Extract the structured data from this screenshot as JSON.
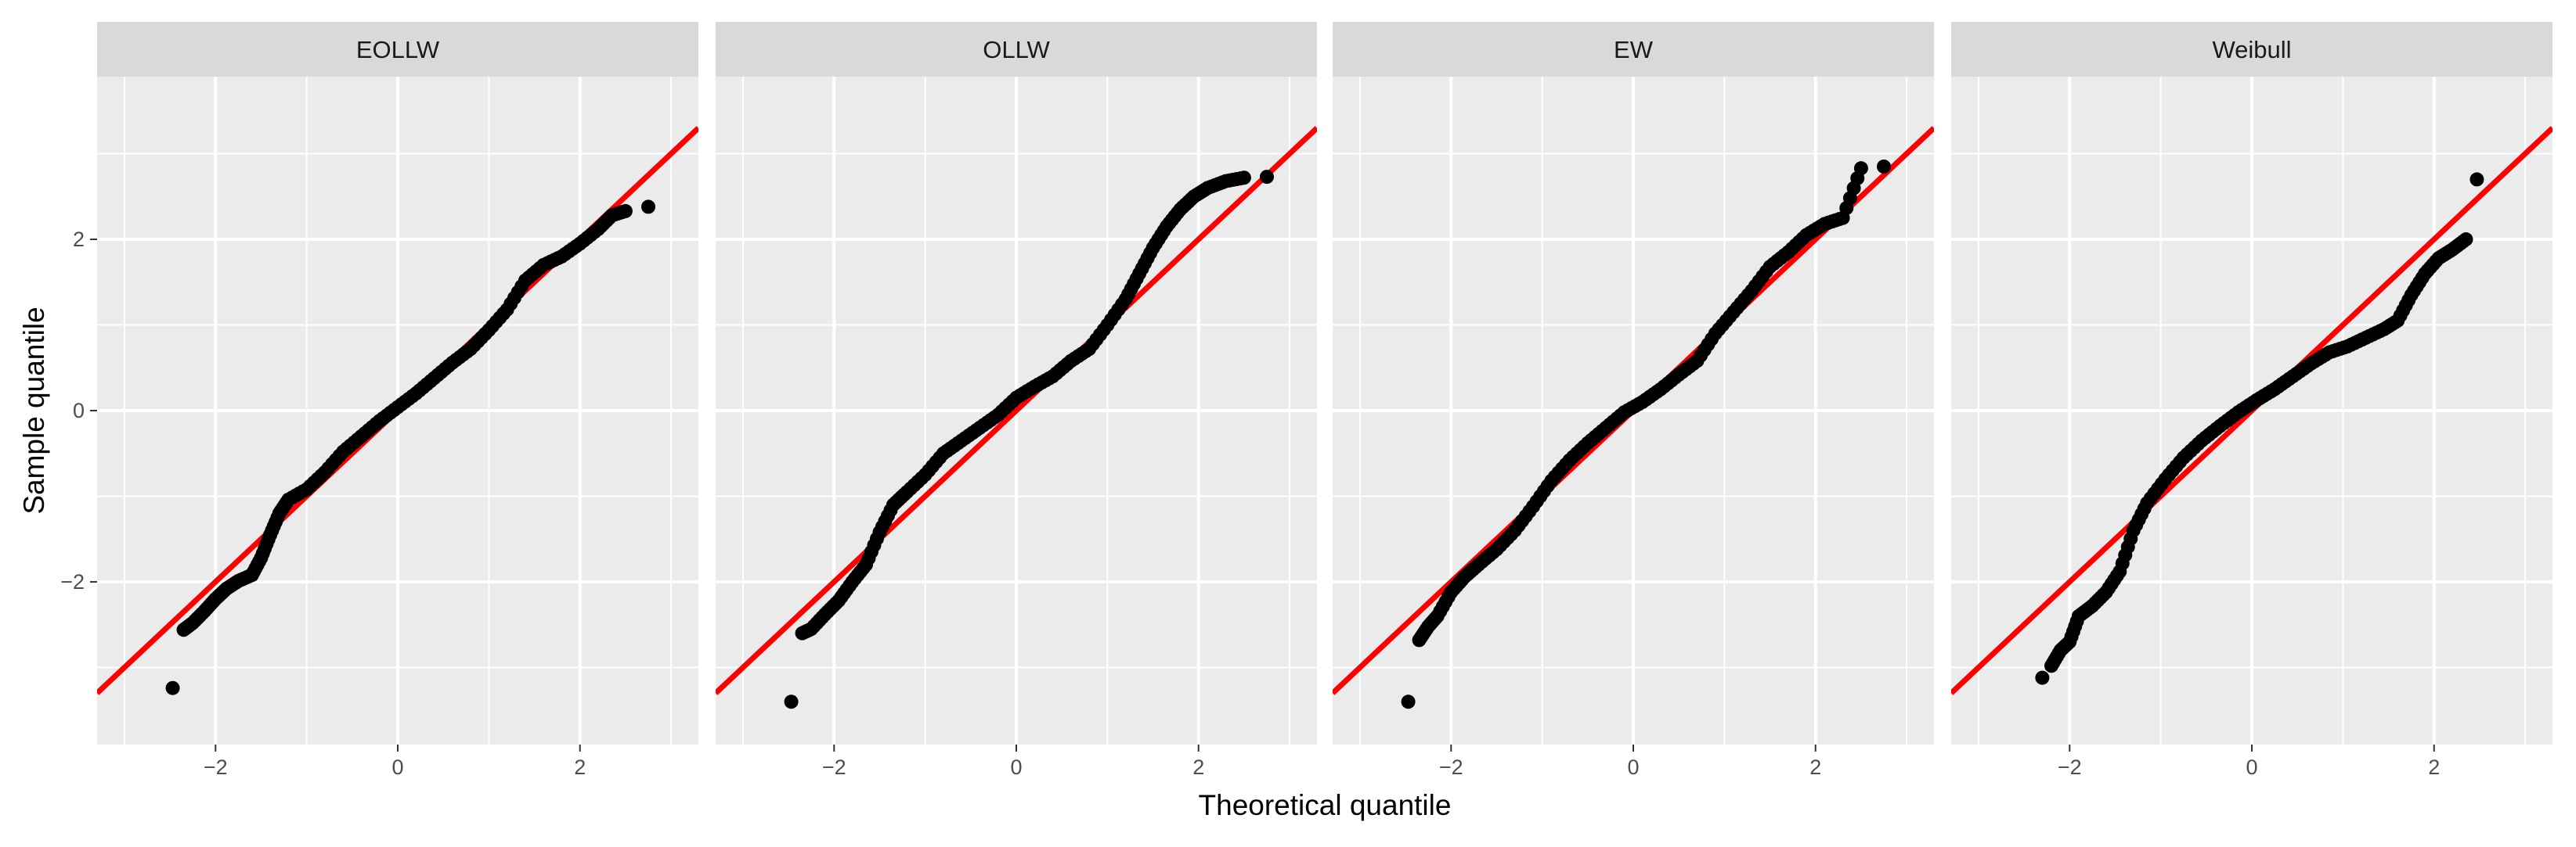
{
  "chart_data": {
    "type": "scatter",
    "subtype": "qq-plot facets",
    "xlabel": "Theoretical quantile",
    "ylabel": "Sample quantile",
    "xlim": [
      -3.3,
      3.3
    ],
    "ylim": [
      -3.9,
      3.9
    ],
    "x_ticks": [
      -2,
      0,
      2
    ],
    "y_ticks": [
      -2,
      0,
      2
    ],
    "x_tick_labels": [
      "−2",
      "0",
      "2"
    ],
    "y_tick_labels": [
      "−2",
      "0",
      "2"
    ],
    "grid": true,
    "legend": "none",
    "colors": {
      "panel_background": "#ebebeb",
      "strip_background": "#d9d9d9",
      "grid_line": "#ffffff",
      "point": "#000000",
      "reference_line": "#ff0000"
    },
    "reference_line": {
      "slope": 1,
      "intercept": 0
    },
    "panels": [
      {
        "title": "EOLLW",
        "points": [
          [
            -2.47,
            -3.24
          ],
          [
            -2.35,
            -2.56
          ],
          [
            -2.25,
            -2.48
          ],
          [
            -2.12,
            -2.34
          ],
          [
            -2.0,
            -2.2
          ],
          [
            -1.88,
            -2.08
          ],
          [
            -1.75,
            -1.99
          ],
          [
            -1.6,
            -1.92
          ],
          [
            -1.5,
            -1.72
          ],
          [
            -1.4,
            -1.45
          ],
          [
            -1.3,
            -1.2
          ],
          [
            -1.2,
            -1.04
          ],
          [
            -1.0,
            -0.92
          ],
          [
            -0.8,
            -0.72
          ],
          [
            -0.6,
            -0.48
          ],
          [
            -0.4,
            -0.3
          ],
          [
            -0.2,
            -0.12
          ],
          [
            0.0,
            0.04
          ],
          [
            0.2,
            0.2
          ],
          [
            0.4,
            0.38
          ],
          [
            0.6,
            0.56
          ],
          [
            0.8,
            0.72
          ],
          [
            1.0,
            0.94
          ],
          [
            1.2,
            1.18
          ],
          [
            1.4,
            1.52
          ],
          [
            1.6,
            1.7
          ],
          [
            1.8,
            1.8
          ],
          [
            2.0,
            1.95
          ],
          [
            2.2,
            2.12
          ],
          [
            2.35,
            2.28
          ],
          [
            2.5,
            2.33
          ],
          [
            2.75,
            2.38
          ]
        ]
      },
      {
        "title": "OLLW",
        "points": [
          [
            -2.47,
            -3.4
          ],
          [
            -2.35,
            -2.6
          ],
          [
            -2.25,
            -2.55
          ],
          [
            -2.1,
            -2.38
          ],
          [
            -1.95,
            -2.22
          ],
          [
            -1.8,
            -2.0
          ],
          [
            -1.65,
            -1.8
          ],
          [
            -1.5,
            -1.42
          ],
          [
            -1.35,
            -1.1
          ],
          [
            -1.2,
            -0.95
          ],
          [
            -1.0,
            -0.75
          ],
          [
            -0.8,
            -0.5
          ],
          [
            -0.6,
            -0.35
          ],
          [
            -0.4,
            -0.2
          ],
          [
            -0.2,
            -0.05
          ],
          [
            0.0,
            0.15
          ],
          [
            0.2,
            0.28
          ],
          [
            0.4,
            0.4
          ],
          [
            0.6,
            0.58
          ],
          [
            0.8,
            0.72
          ],
          [
            1.0,
            1.0
          ],
          [
            1.2,
            1.3
          ],
          [
            1.35,
            1.6
          ],
          [
            1.5,
            1.9
          ],
          [
            1.65,
            2.15
          ],
          [
            1.8,
            2.35
          ],
          [
            1.95,
            2.5
          ],
          [
            2.1,
            2.6
          ],
          [
            2.3,
            2.68
          ],
          [
            2.5,
            2.72
          ],
          [
            2.75,
            2.73
          ]
        ]
      },
      {
        "title": "EW",
        "points": [
          [
            -2.47,
            -3.4
          ],
          [
            -2.35,
            -2.68
          ],
          [
            -2.25,
            -2.52
          ],
          [
            -2.15,
            -2.4
          ],
          [
            -2.0,
            -2.12
          ],
          [
            -1.85,
            -1.94
          ],
          [
            -1.7,
            -1.8
          ],
          [
            -1.5,
            -1.62
          ],
          [
            -1.3,
            -1.4
          ],
          [
            -1.1,
            -1.12
          ],
          [
            -0.9,
            -0.82
          ],
          [
            -0.7,
            -0.58
          ],
          [
            -0.5,
            -0.38
          ],
          [
            -0.3,
            -0.2
          ],
          [
            -0.1,
            -0.02
          ],
          [
            0.1,
            0.1
          ],
          [
            0.3,
            0.25
          ],
          [
            0.5,
            0.42
          ],
          [
            0.7,
            0.58
          ],
          [
            0.9,
            0.9
          ],
          [
            1.1,
            1.15
          ],
          [
            1.3,
            1.4
          ],
          [
            1.5,
            1.68
          ],
          [
            1.7,
            1.85
          ],
          [
            1.9,
            2.05
          ],
          [
            2.1,
            2.18
          ],
          [
            2.3,
            2.25
          ],
          [
            2.5,
            2.83
          ],
          [
            2.75,
            2.85
          ]
        ]
      },
      {
        "title": "Weibull",
        "points": [
          [
            -2.3,
            -3.12
          ],
          [
            -2.2,
            -2.98
          ],
          [
            -2.1,
            -2.8
          ],
          [
            -2.0,
            -2.7
          ],
          [
            -1.9,
            -2.4
          ],
          [
            -1.75,
            -2.28
          ],
          [
            -1.6,
            -2.12
          ],
          [
            -1.45,
            -1.88
          ],
          [
            -1.3,
            -1.4
          ],
          [
            -1.15,
            -1.08
          ],
          [
            -0.95,
            -0.8
          ],
          [
            -0.75,
            -0.55
          ],
          [
            -0.55,
            -0.35
          ],
          [
            -0.35,
            -0.18
          ],
          [
            -0.15,
            -0.02
          ],
          [
            0.05,
            0.12
          ],
          [
            0.25,
            0.25
          ],
          [
            0.45,
            0.4
          ],
          [
            0.65,
            0.55
          ],
          [
            0.85,
            0.68
          ],
          [
            1.05,
            0.75
          ],
          [
            1.25,
            0.85
          ],
          [
            1.45,
            0.95
          ],
          [
            1.6,
            1.05
          ],
          [
            1.75,
            1.35
          ],
          [
            1.9,
            1.6
          ],
          [
            2.05,
            1.78
          ],
          [
            2.2,
            1.88
          ],
          [
            2.35,
            2.0
          ],
          [
            2.47,
            2.7
          ]
        ]
      }
    ]
  }
}
